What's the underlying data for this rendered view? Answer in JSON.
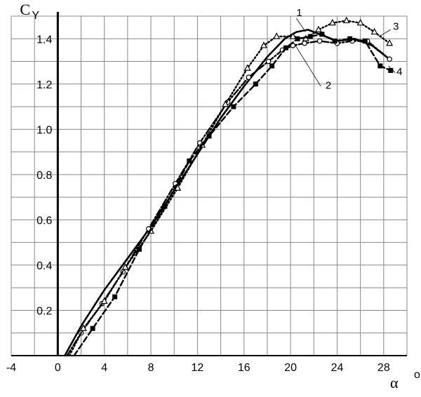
{
  "chart_data": {
    "type": "line",
    "xlabel": "α",
    "xlabel_superscript": "o",
    "ylabel": "C",
    "ylabel_subscript": "Y",
    "xlim": [
      -4,
      30
    ],
    "ylim": [
      0,
      1.5
    ],
    "grid": true,
    "x_ticks": [
      -4,
      0,
      4,
      8,
      12,
      16,
      20,
      24,
      28
    ],
    "x_tick_labels": [
      "-4",
      "0",
      "4",
      "8",
      "12",
      "16",
      "20",
      "24",
      "28"
    ],
    "y_ticks": [
      0.2,
      0.4,
      0.6,
      0.8,
      1.0,
      1.2,
      1.4
    ],
    "y_tick_labels": [
      "0.2",
      "0.4",
      "0.6",
      "0.8",
      "1.0",
      "1.2",
      "1.4"
    ],
    "series": [
      {
        "name": "1",
        "style": "solid",
        "marker": "none",
        "x": [
          0.6,
          2,
          4,
          6,
          8,
          10,
          12,
          14,
          16,
          18,
          19.5,
          20.5,
          21.5,
          22.5,
          24,
          25.5,
          27,
          28.5
        ],
        "y": [
          0.0,
          0.13,
          0.29,
          0.43,
          0.57,
          0.73,
          0.89,
          1.05,
          1.19,
          1.32,
          1.4,
          1.43,
          1.44,
          1.42,
          1.39,
          1.4,
          1.37,
          1.31
        ]
      },
      {
        "name": "2",
        "style": "dashdot",
        "marker": "circle-open",
        "x": [
          0.8,
          2,
          3.8,
          5.6,
          7.8,
          10.1,
          12.2,
          14.6,
          16.4,
          18.1,
          19.3,
          20.2,
          21.2,
          22.5,
          24.0,
          25.3,
          26.6,
          28.5
        ],
        "y": [
          0.0,
          0.1,
          0.23,
          0.37,
          0.56,
          0.76,
          0.94,
          1.12,
          1.23,
          1.3,
          1.35,
          1.37,
          1.38,
          1.39,
          1.38,
          1.39,
          1.39,
          1.31
        ]
      },
      {
        "name": "3",
        "style": "dotted",
        "marker": "triangle-open",
        "x": [
          1.0,
          2.2,
          4.0,
          5.8,
          8.0,
          10.3,
          12.4,
          14.4,
          16.3,
          17.7,
          18.8,
          20.2,
          21.3,
          22.4,
          23.6,
          24.8,
          26.0,
          27.2,
          28.5
        ],
        "y": [
          0.0,
          0.12,
          0.24,
          0.39,
          0.55,
          0.74,
          0.93,
          1.11,
          1.27,
          1.37,
          1.41,
          1.41,
          1.4,
          1.44,
          1.47,
          1.48,
          1.47,
          1.43,
          1.38
        ]
      },
      {
        "name": "4",
        "style": "dashed",
        "marker": "square-filled",
        "x": [
          1.4,
          3.0,
          4.9,
          7.0,
          9.2,
          11.3,
          13.0,
          15.1,
          17.0,
          18.4,
          19.6,
          20.6,
          21.7,
          22.7,
          23.8,
          25.1,
          26.4,
          27.7,
          28.6
        ],
        "y": [
          0.0,
          0.12,
          0.26,
          0.47,
          0.66,
          0.86,
          0.97,
          1.1,
          1.2,
          1.28,
          1.36,
          1.4,
          1.41,
          1.42,
          1.39,
          1.4,
          1.39,
          1.28,
          1.26
        ]
      }
    ],
    "curve_labels": [
      {
        "text": "1",
        "x": 20.5,
        "y": 1.5
      },
      {
        "text": "2",
        "x": 23.0,
        "y": 1.18
      },
      {
        "text": "3",
        "x": 28.8,
        "y": 1.44
      },
      {
        "text": "4",
        "x": 29.1,
        "y": 1.24
      }
    ]
  }
}
